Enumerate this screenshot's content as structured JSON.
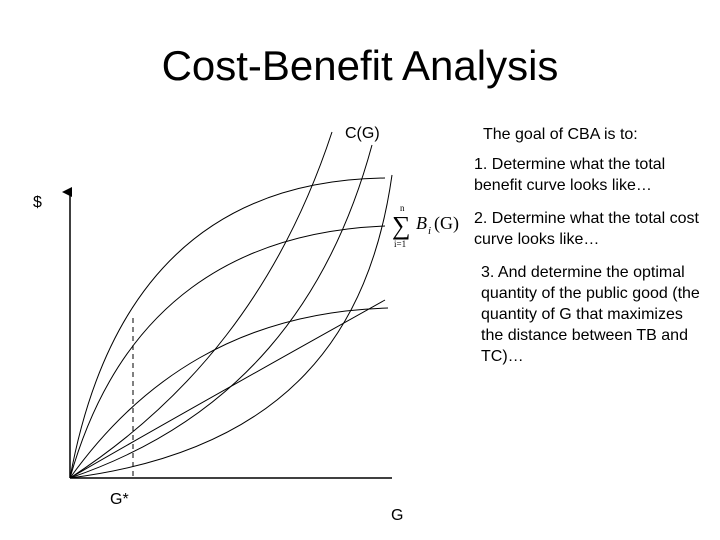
{
  "title": "Cost-Benefit Analysis",
  "labels": {
    "cost_curve": "C(G)",
    "y_axis": "$",
    "g_star": "G*",
    "x_axis": "G"
  },
  "benefit_formula": {
    "upper": "n",
    "lower": "i=1",
    "symbol": "B",
    "subscript": "i",
    "argument": "(G)"
  },
  "notes": {
    "intro": "The goal of CBA is to:",
    "items": [
      "1. Determine what the total benefit curve looks like…",
      "2. Determine what the total cost curve looks like…",
      "3. And determine the optimal quantity of the public good (the quantity of G that maximizes the distance between TB and TC)…"
    ]
  }
}
